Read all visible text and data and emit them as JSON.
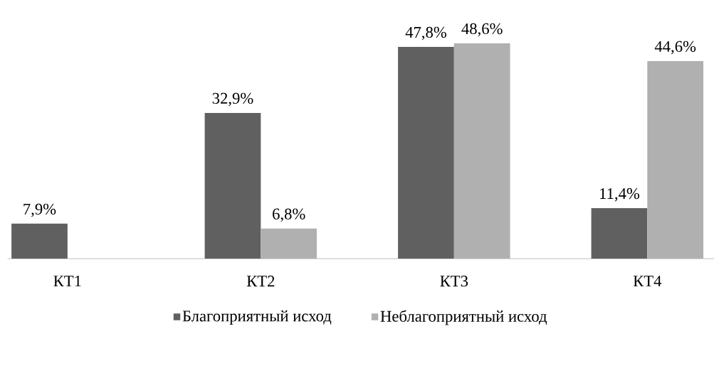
{
  "chart_data": {
    "type": "bar",
    "categories": [
      "КТ1",
      "КТ2",
      "КТ3",
      "КТ4"
    ],
    "series": [
      {
        "name": "Благоприятный исход",
        "color": "#606060",
        "values": [
          7.9,
          32.9,
          47.8,
          11.4
        ],
        "value_labels": [
          "7,9%",
          "32,9%",
          "47,8%",
          "11,4%"
        ]
      },
      {
        "name": "Неблагоприятный исход",
        "color": "#b0b0b0",
        "values": [
          null,
          6.8,
          48.6,
          44.6
        ],
        "value_labels": [
          null,
          "6,8%",
          "48,6%",
          "44,6%"
        ]
      }
    ],
    "legend": "bottom"
  }
}
